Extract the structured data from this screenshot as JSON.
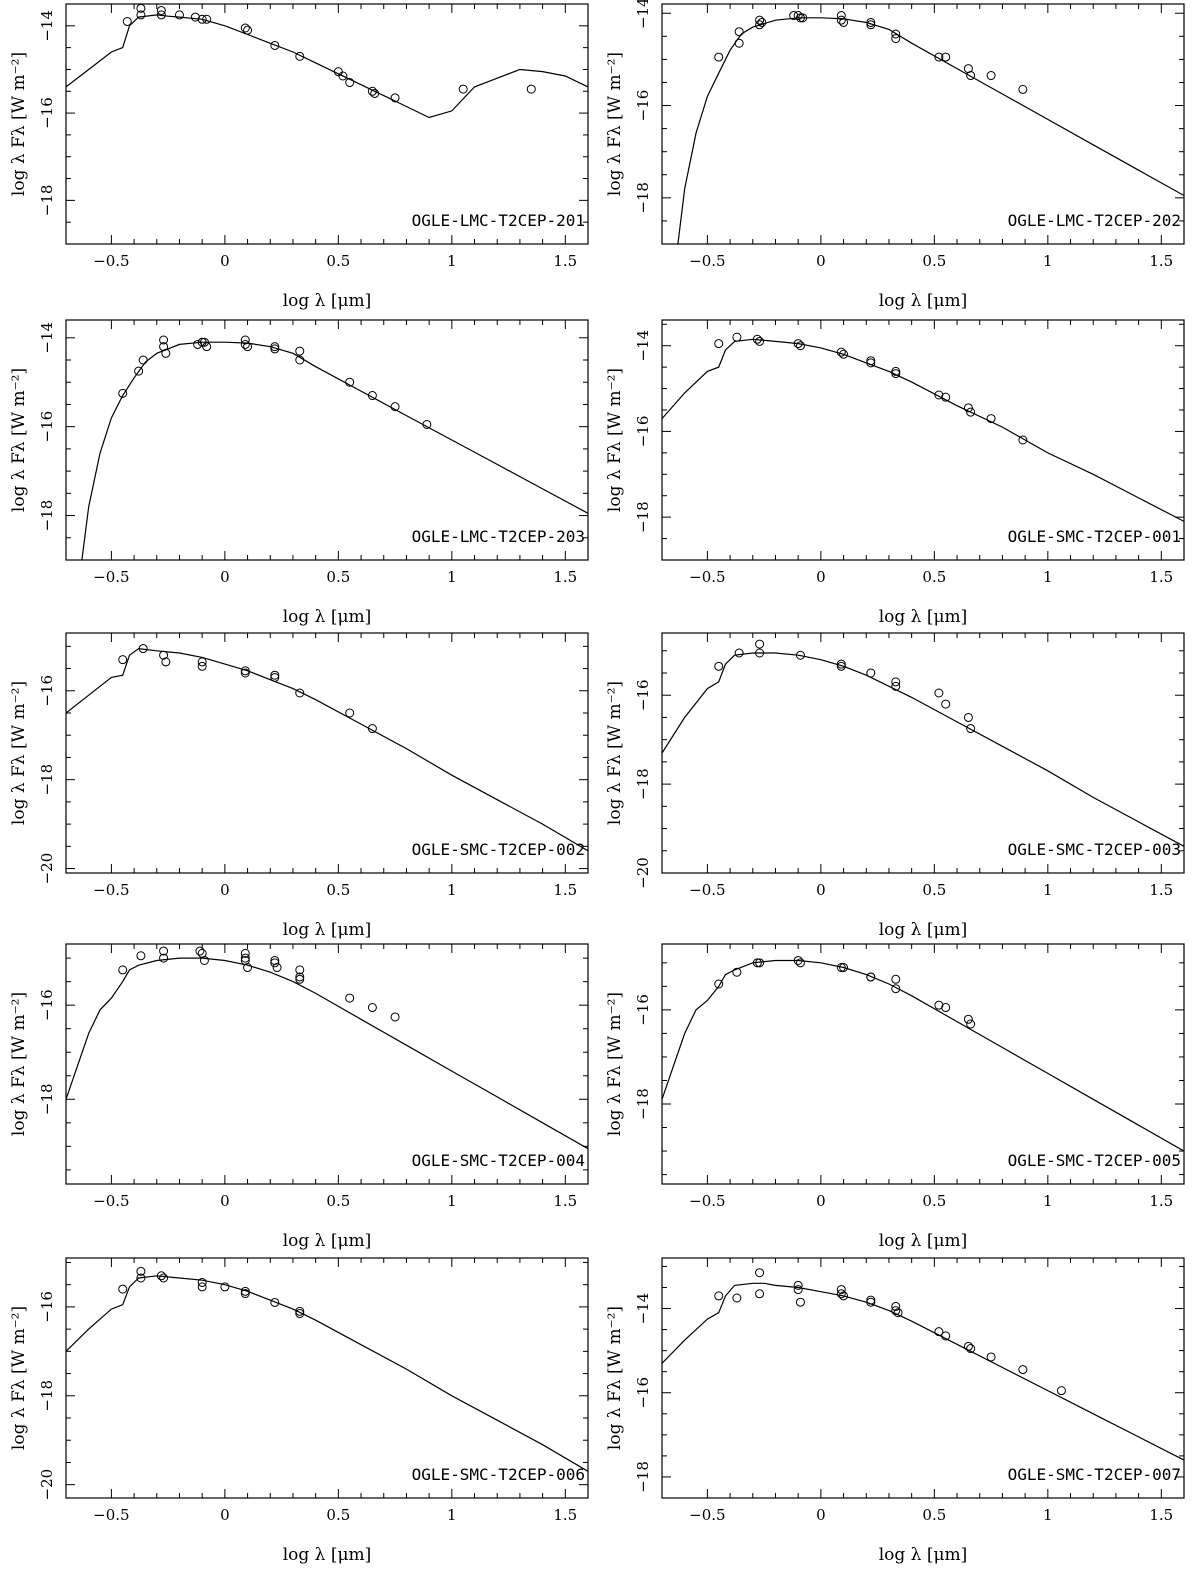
{
  "axis_labels": {
    "x": "log λ [μm]",
    "y": "log λ Fλ [W m⁻²]"
  },
  "chart_data": [
    {
      "type": "line",
      "title": "OGLE-LMC-T2CEP-201",
      "xlim": [
        -0.7,
        1.6
      ],
      "ylim": [
        -19,
        -13.5
      ],
      "xticks": [
        "-0.5",
        "0",
        "0.5",
        "1",
        "1.5"
      ],
      "yticks": [
        "-14",
        "-16",
        "-18"
      ],
      "model": {
        "x": [
          -0.7,
          -0.6,
          -0.5,
          -0.45,
          -0.42,
          -0.38,
          -0.3,
          -0.25,
          -0.2,
          -0.1,
          0,
          0.1,
          0.2,
          0.3,
          0.4,
          0.5,
          0.6,
          0.7,
          0.8,
          0.9,
          1.0,
          1.1,
          1.2,
          1.3,
          1.4,
          1.5,
          1.6
        ],
        "y": [
          -15.4,
          -15.0,
          -14.6,
          -14.5,
          -14.0,
          -13.8,
          -13.75,
          -13.78,
          -13.8,
          -13.85,
          -14.0,
          -14.2,
          -14.4,
          -14.6,
          -14.85,
          -15.1,
          -15.35,
          -15.6,
          -15.85,
          -16.1,
          -15.95,
          -15.4,
          -15.2,
          -15.0,
          -15.05,
          -15.15,
          -15.4
        ]
      },
      "points": {
        "x": [
          -0.43,
          -0.37,
          -0.37,
          -0.28,
          -0.28,
          -0.2,
          -0.13,
          -0.1,
          -0.08,
          0.09,
          0.1,
          0.22,
          0.33,
          0.5,
          0.52,
          0.55,
          0.65,
          0.66,
          0.75,
          1.05,
          1.35
        ],
        "y": [
          -13.9,
          -13.6,
          -13.75,
          -13.65,
          -13.75,
          -13.75,
          -13.8,
          -13.85,
          -13.85,
          -14.05,
          -14.1,
          -14.45,
          -14.7,
          -15.05,
          -15.15,
          -15.3,
          -15.5,
          -15.55,
          -15.65,
          -15.45,
          -15.45
        ]
      }
    },
    {
      "type": "line",
      "title": "OGLE-LMC-T2CEP-202",
      "xlim": [
        -0.7,
        1.6
      ],
      "ylim": [
        -19,
        -13.8
      ],
      "xticks": [
        "-0.5",
        "0",
        "0.5",
        "1",
        "1.5"
      ],
      "yticks": [
        "-14",
        "-16",
        "-18"
      ],
      "model": {
        "x": [
          -0.63,
          -0.6,
          -0.55,
          -0.5,
          -0.45,
          -0.4,
          -0.35,
          -0.3,
          -0.2,
          -0.1,
          0,
          0.1,
          0.2,
          0.3,
          0.4,
          0.6,
          0.8,
          1.0,
          1.2,
          1.4,
          1.6
        ],
        "y": [
          -19.0,
          -17.8,
          -16.6,
          -15.8,
          -15.3,
          -14.8,
          -14.45,
          -14.3,
          -14.15,
          -14.1,
          -14.1,
          -14.12,
          -14.2,
          -14.35,
          -14.65,
          -15.2,
          -15.75,
          -16.3,
          -16.85,
          -17.4,
          -17.95
        ]
      },
      "points": {
        "x": [
          -0.45,
          -0.36,
          -0.36,
          -0.27,
          -0.27,
          -0.26,
          -0.12,
          -0.1,
          -0.09,
          -0.08,
          0.09,
          0.09,
          0.1,
          0.22,
          0.22,
          0.33,
          0.33,
          0.52,
          0.55,
          0.65,
          0.66,
          0.75,
          0.89
        ],
        "y": [
          -14.95,
          -14.4,
          -14.65,
          -14.15,
          -14.25,
          -14.2,
          -14.05,
          -14.05,
          -14.1,
          -14.1,
          -14.05,
          -14.15,
          -14.2,
          -14.2,
          -14.25,
          -14.45,
          -14.55,
          -14.95,
          -14.95,
          -15.2,
          -15.35,
          -15.35,
          -15.65
        ]
      }
    },
    {
      "type": "line",
      "title": "OGLE-LMC-T2CEP-203",
      "xlim": [
        -0.7,
        1.6
      ],
      "ylim": [
        -19,
        -13.6
      ],
      "xticks": [
        "-0.5",
        "0",
        "0.5",
        "1",
        "1.5"
      ],
      "yticks": [
        "-14",
        "-16",
        "-18"
      ],
      "model": {
        "x": [
          -0.63,
          -0.6,
          -0.55,
          -0.5,
          -0.45,
          -0.4,
          -0.35,
          -0.3,
          -0.2,
          -0.1,
          0,
          0.1,
          0.2,
          0.3,
          0.4,
          0.6,
          0.8,
          1.0,
          1.2,
          1.4,
          1.6
        ],
        "y": [
          -19.0,
          -17.8,
          -16.6,
          -15.8,
          -15.3,
          -14.9,
          -14.55,
          -14.35,
          -14.15,
          -14.1,
          -14.1,
          -14.12,
          -14.2,
          -14.35,
          -14.65,
          -15.2,
          -15.75,
          -16.3,
          -16.85,
          -17.4,
          -17.95
        ]
      },
      "points": {
        "x": [
          -0.45,
          -0.38,
          -0.36,
          -0.27,
          -0.27,
          -0.26,
          -0.12,
          -0.1,
          -0.09,
          -0.08,
          0.09,
          0.09,
          0.1,
          0.22,
          0.22,
          0.33,
          0.33,
          0.55,
          0.65,
          0.75,
          0.89
        ],
        "y": [
          -15.25,
          -14.75,
          -14.5,
          -14.05,
          -14.2,
          -14.35,
          -14.15,
          -14.1,
          -14.1,
          -14.2,
          -14.05,
          -14.15,
          -14.2,
          -14.2,
          -14.25,
          -14.3,
          -14.5,
          -15.0,
          -15.3,
          -15.55,
          -15.95
        ]
      }
    },
    {
      "type": "line",
      "title": "OGLE-SMC-T2CEP-001",
      "xlim": [
        -0.7,
        1.6
      ],
      "ylim": [
        -19,
        -13.4
      ],
      "xticks": [
        "-0.5",
        "0",
        "0.5",
        "1",
        "1.5"
      ],
      "yticks": [
        "-14",
        "-16",
        "-18"
      ],
      "model": {
        "x": [
          -0.7,
          -0.6,
          -0.5,
          -0.45,
          -0.42,
          -0.38,
          -0.3,
          -0.2,
          -0.1,
          0,
          0.1,
          0.2,
          0.3,
          0.4,
          0.6,
          0.8,
          1.0,
          1.2,
          1.4,
          1.6
        ],
        "y": [
          -15.7,
          -15.1,
          -14.6,
          -14.5,
          -14.1,
          -13.9,
          -13.85,
          -13.9,
          -13.95,
          -14.05,
          -14.2,
          -14.4,
          -14.6,
          -14.85,
          -15.4,
          -15.9,
          -16.5,
          -17.0,
          -17.55,
          -18.1
        ]
      },
      "points": {
        "x": [
          -0.45,
          -0.37,
          -0.28,
          -0.27,
          -0.1,
          -0.09,
          0.09,
          0.1,
          0.22,
          0.22,
          0.33,
          0.33,
          0.52,
          0.55,
          0.65,
          0.66,
          0.75,
          0.89
        ],
        "y": [
          -13.95,
          -13.8,
          -13.85,
          -13.9,
          -13.95,
          -14.0,
          -14.15,
          -14.2,
          -14.35,
          -14.4,
          -14.6,
          -14.65,
          -15.15,
          -15.2,
          -15.45,
          -15.55,
          -15.7,
          -16.2
        ]
      }
    },
    {
      "type": "line",
      "title": "OGLE-SMC-T2CEP-002",
      "xlim": [
        -0.7,
        1.6
      ],
      "ylim": [
        -20.1,
        -14.7
      ],
      "xticks": [
        "-0.5",
        "0",
        "0.5",
        "1",
        "1.5"
      ],
      "yticks": [
        "-16",
        "-18",
        "-20"
      ],
      "model": {
        "x": [
          -0.7,
          -0.6,
          -0.5,
          -0.45,
          -0.42,
          -0.38,
          -0.3,
          -0.2,
          -0.1,
          0,
          0.1,
          0.2,
          0.3,
          0.4,
          0.6,
          0.8,
          1.0,
          1.2,
          1.4,
          1.6
        ],
        "y": [
          -16.5,
          -16.1,
          -15.7,
          -15.65,
          -15.2,
          -15.05,
          -15.1,
          -15.15,
          -15.25,
          -15.4,
          -15.55,
          -15.75,
          -15.95,
          -16.2,
          -16.75,
          -17.3,
          -17.9,
          -18.45,
          -19.0,
          -19.6
        ]
      },
      "points": {
        "x": [
          -0.45,
          -0.36,
          -0.27,
          -0.26,
          -0.1,
          -0.1,
          0.09,
          0.09,
          0.22,
          0.22,
          0.33,
          0.55,
          0.65
        ],
        "y": [
          -15.3,
          -15.05,
          -15.2,
          -15.35,
          -15.35,
          -15.45,
          -15.55,
          -15.6,
          -15.65,
          -15.7,
          -16.05,
          -16.5,
          -16.85
        ]
      }
    },
    {
      "type": "line",
      "title": "OGLE-SMC-T2CEP-003",
      "xlim": [
        -0.7,
        1.6
      ],
      "ylim": [
        -20,
        -14.6
      ],
      "xticks": [
        "-0.5",
        "0",
        "0.5",
        "1",
        "1.5"
      ],
      "yticks": [
        "-16",
        "-18",
        "-20"
      ],
      "model": {
        "x": [
          -0.7,
          -0.6,
          -0.5,
          -0.45,
          -0.42,
          -0.38,
          -0.3,
          -0.2,
          -0.1,
          0,
          0.1,
          0.2,
          0.3,
          0.4,
          0.6,
          0.8,
          1.0,
          1.2,
          1.4,
          1.6
        ],
        "y": [
          -17.3,
          -16.5,
          -15.85,
          -15.7,
          -15.3,
          -15.1,
          -15.05,
          -15.05,
          -15.1,
          -15.2,
          -15.35,
          -15.55,
          -15.8,
          -16.05,
          -16.6,
          -17.15,
          -17.7,
          -18.3,
          -18.85,
          -19.4
        ]
      },
      "points": {
        "x": [
          -0.45,
          -0.36,
          -0.27,
          -0.27,
          -0.09,
          0.09,
          0.09,
          0.22,
          0.33,
          0.33,
          0.52,
          0.55,
          0.65,
          0.66
        ],
        "y": [
          -15.35,
          -15.05,
          -15.05,
          -14.85,
          -15.1,
          -15.3,
          -15.35,
          -15.5,
          -15.7,
          -15.8,
          -15.95,
          -16.2,
          -16.5,
          -16.75
        ]
      }
    },
    {
      "type": "line",
      "title": "OGLE-SMC-T2CEP-004",
      "xlim": [
        -0.7,
        1.6
      ],
      "ylim": [
        -19.8,
        -14.7
      ],
      "xticks": [
        "-0.5",
        "0",
        "0.5",
        "1",
        "1.5"
      ],
      "yticks": [
        "-16",
        "-18"
      ],
      "model": {
        "x": [
          -0.7,
          -0.65,
          -0.6,
          -0.55,
          -0.5,
          -0.45,
          -0.42,
          -0.38,
          -0.3,
          -0.2,
          -0.1,
          0,
          0.1,
          0.2,
          0.3,
          0.4,
          0.6,
          0.8,
          1.0,
          1.2,
          1.4,
          1.6
        ],
        "y": [
          -18.0,
          -17.3,
          -16.6,
          -16.1,
          -15.85,
          -15.5,
          -15.25,
          -15.15,
          -15.05,
          -15.0,
          -15.0,
          -15.05,
          -15.15,
          -15.3,
          -15.5,
          -15.75,
          -16.3,
          -16.85,
          -17.4,
          -17.95,
          -18.5,
          -19.05
        ]
      },
      "points": {
        "x": [
          -0.45,
          -0.37,
          -0.27,
          -0.27,
          -0.11,
          -0.1,
          -0.09,
          0.09,
          0.09,
          0.09,
          0.1,
          0.22,
          0.22,
          0.23,
          0.33,
          0.33,
          0.33,
          0.55,
          0.65,
          0.75
        ],
        "y": [
          -15.25,
          -14.95,
          -14.85,
          -15.0,
          -14.85,
          -14.9,
          -15.05,
          -14.9,
          -15.0,
          -15.05,
          -15.2,
          -15.05,
          -15.1,
          -15.2,
          -15.25,
          -15.4,
          -15.45,
          -15.85,
          -16.05,
          -16.25
        ]
      }
    },
    {
      "type": "line",
      "title": "OGLE-SMC-T2CEP-005",
      "xlim": [
        -0.7,
        1.6
      ],
      "ylim": [
        -19.7,
        -14.6
      ],
      "xticks": [
        "-0.5",
        "0",
        "0.5",
        "1",
        "1.5"
      ],
      "yticks": [
        "-16",
        "-18"
      ],
      "model": {
        "x": [
          -0.7,
          -0.65,
          -0.6,
          -0.55,
          -0.5,
          -0.45,
          -0.42,
          -0.38,
          -0.3,
          -0.2,
          -0.1,
          0,
          0.1,
          0.2,
          0.3,
          0.4,
          0.6,
          0.8,
          1.0,
          1.2,
          1.4,
          1.6
        ],
        "y": [
          -17.9,
          -17.2,
          -16.5,
          -16.0,
          -15.8,
          -15.5,
          -15.25,
          -15.15,
          -15.0,
          -14.95,
          -14.95,
          -15.0,
          -15.1,
          -15.25,
          -15.45,
          -15.7,
          -16.25,
          -16.8,
          -17.35,
          -17.9,
          -18.45,
          -19.0
        ]
      },
      "points": {
        "x": [
          -0.45,
          -0.37,
          -0.28,
          -0.27,
          -0.1,
          -0.09,
          0.09,
          0.1,
          0.22,
          0.22,
          0.33,
          0.33,
          0.52,
          0.55,
          0.65,
          0.66
        ],
        "y": [
          -15.45,
          -15.2,
          -15.0,
          -15.0,
          -14.95,
          -15.0,
          -15.1,
          -15.1,
          -15.3,
          -15.3,
          -15.35,
          -15.55,
          -15.9,
          -15.95,
          -16.2,
          -16.3
        ]
      }
    },
    {
      "type": "line",
      "title": "OGLE-SMC-T2CEP-006",
      "xlim": [
        -0.7,
        1.6
      ],
      "ylim": [
        -20.3,
        -14.9
      ],
      "xticks": [
        "-0.5",
        "0",
        "0.5",
        "1",
        "1.5"
      ],
      "yticks": [
        "-16",
        "-18",
        "-20"
      ],
      "model": {
        "x": [
          -0.7,
          -0.6,
          -0.5,
          -0.45,
          -0.42,
          -0.38,
          -0.3,
          -0.2,
          -0.1,
          0,
          0.1,
          0.2,
          0.3,
          0.4,
          0.6,
          0.8,
          1.0,
          1.2,
          1.4,
          1.6
        ],
        "y": [
          -17.0,
          -16.5,
          -16.05,
          -15.95,
          -15.55,
          -15.35,
          -15.3,
          -15.35,
          -15.4,
          -15.5,
          -15.65,
          -15.85,
          -16.05,
          -16.3,
          -16.85,
          -17.4,
          -18.0,
          -18.55,
          -19.1,
          -19.7
        ]
      },
      "points": {
        "x": [
          -0.45,
          -0.37,
          -0.37,
          -0.28,
          -0.27,
          -0.1,
          -0.1,
          0.0,
          0.09,
          0.09,
          0.22,
          0.33,
          0.33
        ],
        "y": [
          -15.6,
          -15.2,
          -15.35,
          -15.3,
          -15.35,
          -15.45,
          -15.55,
          -15.55,
          -15.65,
          -15.7,
          -15.9,
          -16.1,
          -16.15
        ]
      }
    },
    {
      "type": "line",
      "title": "OGLE-SMC-T2CEP-007",
      "xlim": [
        -0.7,
        1.6
      ],
      "ylim": [
        -18.5,
        -12.8
      ],
      "xticks": [
        "-0.5",
        "0",
        "0.5",
        "1",
        "1.5"
      ],
      "yticks": [
        "-14",
        "-16",
        "-18"
      ],
      "model": {
        "x": [
          -0.7,
          -0.6,
          -0.5,
          -0.45,
          -0.42,
          -0.38,
          -0.3,
          -0.25,
          -0.2,
          -0.1,
          0,
          0.1,
          0.2,
          0.3,
          0.4,
          0.6,
          0.8,
          1.0,
          1.2,
          1.4,
          1.6
        ],
        "y": [
          -15.3,
          -14.75,
          -14.25,
          -14.1,
          -13.7,
          -13.45,
          -13.4,
          -13.4,
          -13.45,
          -13.5,
          -13.6,
          -13.7,
          -13.85,
          -14.05,
          -14.3,
          -14.85,
          -15.4,
          -15.95,
          -16.5,
          -17.05,
          -17.6
        ]
      },
      "points": {
        "x": [
          -0.45,
          -0.37,
          -0.27,
          -0.27,
          -0.1,
          -0.1,
          -0.09,
          0.09,
          0.09,
          0.1,
          0.22,
          0.22,
          0.33,
          0.33,
          0.34,
          0.52,
          0.55,
          0.65,
          0.66,
          0.75,
          0.89,
          1.06
        ],
        "y": [
          -13.7,
          -13.75,
          -13.15,
          -13.65,
          -13.45,
          -13.55,
          -13.85,
          -13.55,
          -13.65,
          -13.7,
          -13.8,
          -13.85,
          -13.95,
          -14.05,
          -14.1,
          -14.55,
          -14.65,
          -14.9,
          -14.95,
          -15.15,
          -15.45,
          -15.95
        ]
      }
    }
  ]
}
